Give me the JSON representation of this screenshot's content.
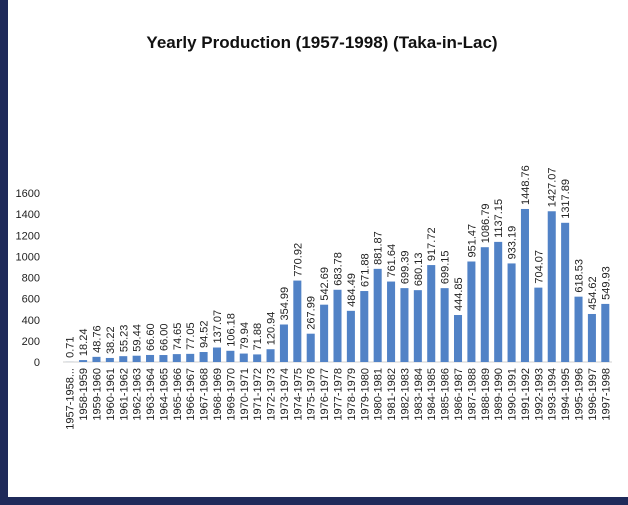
{
  "chart_data": {
    "type": "bar",
    "title": "Yearly Production (1957-1998) (Taka-in-Lac)",
    "categories": [
      "1957-1958...",
      "1958-1959",
      "1959-1960",
      "1960-1961",
      "1961-1962",
      "1962-1963",
      "1963-1964",
      "1964-1965",
      "1965-1966",
      "1966-1967",
      "1967-1968",
      "1968-1969",
      "1969-1970",
      "1970-1971",
      "1971-1972",
      "1972-1973",
      "1973-1974",
      "1974-1975",
      "1975-1976",
      "1976-1977",
      "1977-1978",
      "1978-1979",
      "1979-1980",
      "1980-1981",
      "1981-1982",
      "1982-1983",
      "1983-1984",
      "1984-1985",
      "1985-1986",
      "1986-1987",
      "1987-1988",
      "1988-1989",
      "1989-1990",
      "1990-1991",
      "1991-1992",
      "1992-1993",
      "1993-1994",
      "1994-1995",
      "1995-1996",
      "1996-1997",
      "1997-1998"
    ],
    "values": [
      0.71,
      18.24,
      48.76,
      38.22,
      55.23,
      59.44,
      66.6,
      66,
      74.65,
      77.05,
      94.52,
      137.07,
      106.18,
      79.94,
      71.88,
      120.94,
      354.99,
      770.92,
      267.99,
      542.69,
      683.78,
      484.49,
      671.88,
      881.87,
      761.64,
      699.39,
      680.13,
      917.72,
      699.15,
      444.85,
      951.47,
      1086.79,
      1137.15,
      933.19,
      1448.76,
      704.07,
      1427.07,
      1317.89,
      618.53,
      454.62,
      549.93
    ],
    "value_labels": [
      "0.71",
      "18.24",
      "48.76",
      "38.22",
      "55.23",
      "59.44",
      "66.60",
      "66.00",
      "74.65",
      "77.05",
      "94.52",
      "137.07",
      "106.18",
      "79.94",
      "71.88",
      "120.94",
      "354.99",
      "770.92",
      "267.99",
      "542.69",
      "683.78",
      "484.49",
      "671.88",
      "881.87",
      "761.64",
      "699.39",
      "680.13",
      "917.72",
      "699.15",
      "444.85",
      "951.47",
      "1086.79",
      "1137.15",
      "933.19",
      "1448.76",
      "704.07",
      "1427.07",
      "1317.89",
      "618.53",
      "454.62",
      "549.93"
    ],
    "color": "#5182c6",
    "ylim": [
      0,
      1600
    ],
    "yticks": [
      0,
      200,
      400,
      600,
      800,
      1000,
      1200,
      1400,
      1600
    ],
    "grid": false
  }
}
